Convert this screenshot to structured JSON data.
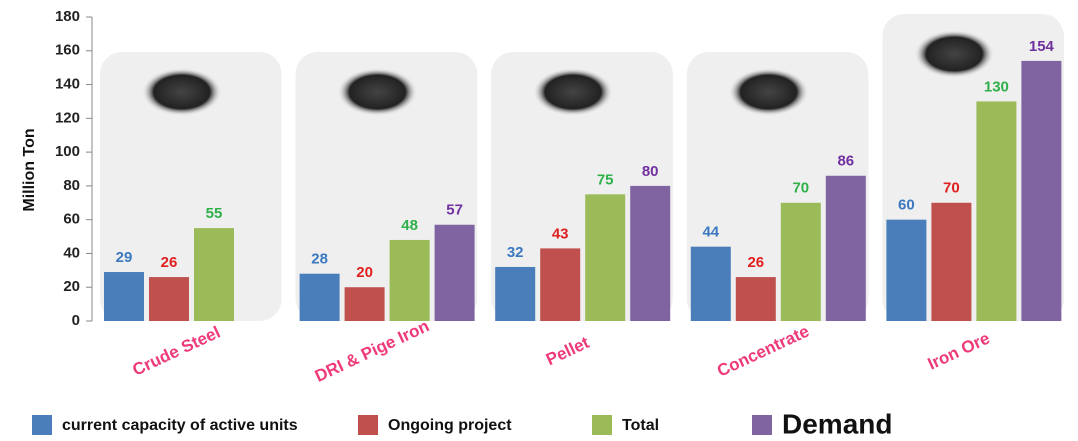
{
  "chart_data": {
    "type": "bar",
    "y_label": "Million Ton",
    "categories": [
      "Crude Steel",
      "DRI & Pige Iron",
      "Pellet",
      "Concentrate",
      "Iron Ore"
    ],
    "series": [
      {
        "name": "current capacity of active units",
        "color": "#4a7ebb",
        "label_color": "#3a78c0",
        "values": [
          29,
          28,
          32,
          44,
          60
        ]
      },
      {
        "name": "Ongoing project",
        "color": "#c0504d",
        "label_color": "#e02020",
        "values": [
          26,
          20,
          43,
          26,
          70
        ]
      },
      {
        "name": "Total",
        "color": "#9bbb59",
        "label_color": "#2fb04a",
        "values": [
          55,
          48,
          75,
          70,
          130
        ]
      },
      {
        "name": "Demand",
        "color": "#8064a2",
        "label_color": "#7030a0",
        "values": [
          null,
          57,
          80,
          86,
          154
        ]
      }
    ],
    "ylim": [
      0,
      180
    ],
    "yticks": [
      0,
      20,
      40,
      60,
      80,
      100,
      120,
      140,
      160,
      180
    ]
  }
}
